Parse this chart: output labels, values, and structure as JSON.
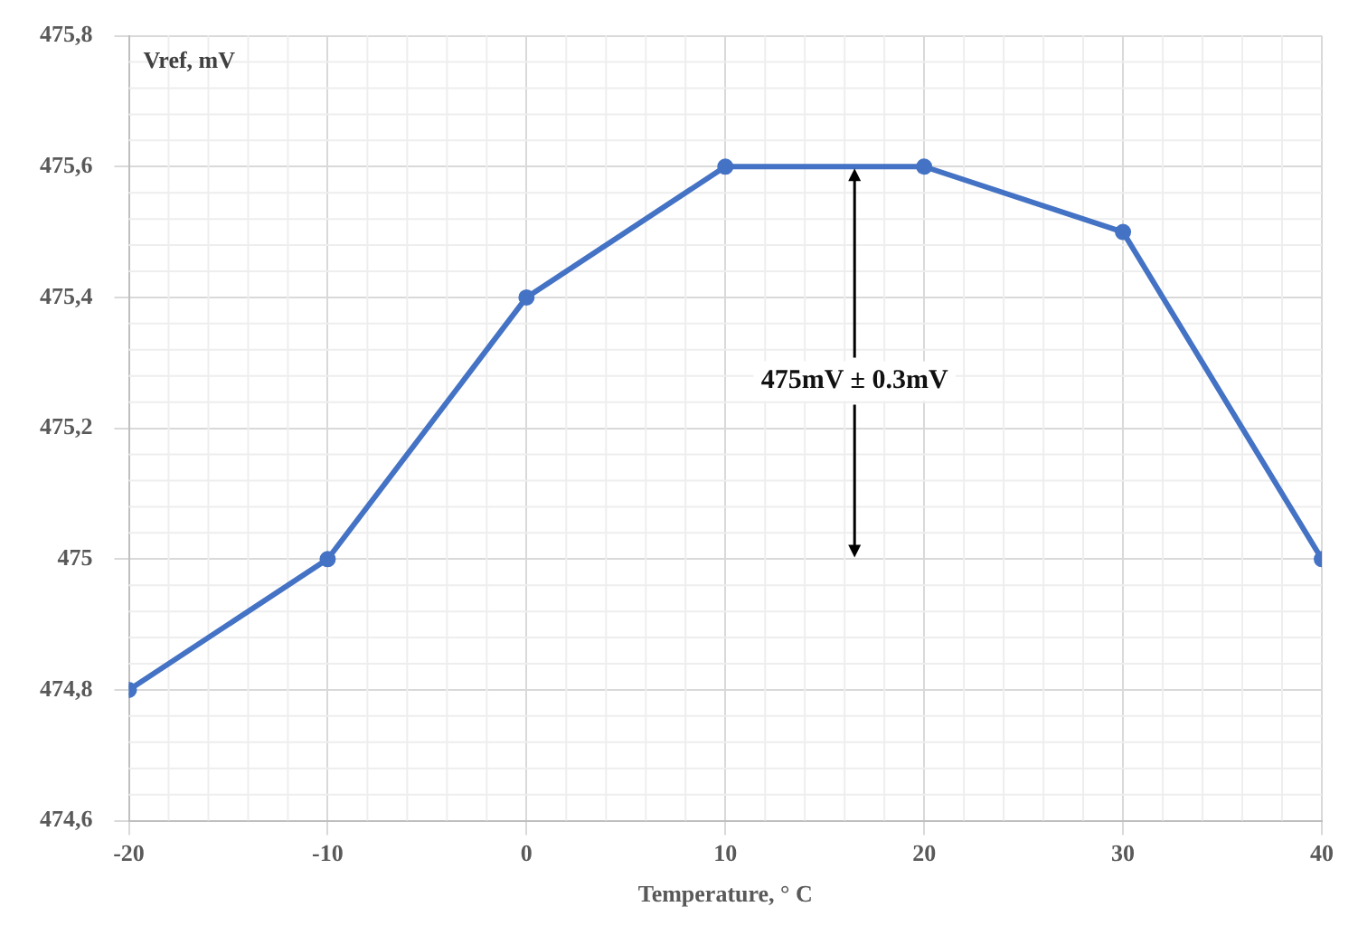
{
  "chart_data": {
    "type": "line",
    "xlabel": "Temperature, ° C",
    "ylabel": "Vref, mV",
    "x": [
      -20,
      -10,
      0,
      10,
      20,
      30,
      40
    ],
    "series": [
      {
        "color": "#4472c4",
        "values": [
          474.8,
          475.0,
          475.4,
          475.6,
          475.6,
          475.5,
          475.0
        ]
      }
    ],
    "xlim": [
      -20,
      40
    ],
    "xticks": [
      -20,
      -10,
      0,
      10,
      20,
      30,
      40
    ],
    "ylim": [
      474.6,
      475.8
    ],
    "yticks": [
      {
        "value": 474.6,
        "label": "474,6"
      },
      {
        "value": 474.8,
        "label": "474,8"
      },
      {
        "value": 475,
        "label": "475"
      },
      {
        "value": 475.2,
        "label": "475,2"
      },
      {
        "value": 475.4,
        "label": "475,4"
      },
      {
        "value": 475.6,
        "label": "475,6"
      },
      {
        "value": 475.8,
        "label": "475,8"
      }
    ],
    "annotations": [
      {
        "text": "475mV ± 0.3mV",
        "x": 16.5,
        "y": 475.6
      }
    ],
    "grid": true,
    "marker": "circle",
    "line_style": "solid",
    "legend": false
  }
}
